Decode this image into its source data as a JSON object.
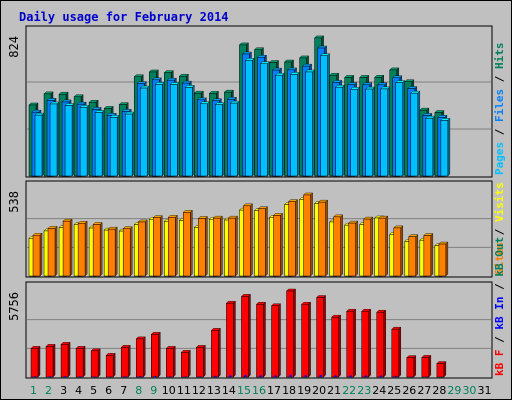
{
  "title": "Daily usage for February 2014",
  "colors": {
    "background": "#c0c0c0",
    "title": "#0000cc",
    "hits": "#00805c",
    "files": "#0080ff",
    "pages": "#00c0ff",
    "visits": "#ffff00",
    "sites": "#ff8000",
    "kb_in": "#0000ff",
    "kb_out": "#00805c",
    "kbytes": "#ff0000",
    "weekday_label": "#000000",
    "weekend_label": "#00805c"
  },
  "panel_labels": {
    "top": [
      {
        "text": "Pages",
        "color": "#00c0ff"
      },
      {
        "text": " / ",
        "color": "#000000"
      },
      {
        "text": "Files",
        "color": "#0080ff"
      },
      {
        "text": " / ",
        "color": "#000000"
      },
      {
        "text": "Hits",
        "color": "#00805c"
      }
    ],
    "middle": [
      {
        "text": "Sites",
        "color": "#ff8000"
      },
      {
        "text": " / ",
        "color": "#000000"
      },
      {
        "text": "Visits",
        "color": "#ffff00"
      }
    ],
    "bottom": [
      {
        "text": "kB F",
        "color": "#ff0000"
      },
      {
        "text": " / ",
        "color": "#000000"
      },
      {
        "text": "kB In",
        "color": "#0000ff"
      },
      {
        "text": " / ",
        "color": "#000000"
      },
      {
        "text": "kB Out",
        "color": "#00805c"
      }
    ]
  },
  "chart_data": {
    "type": "bar",
    "title": "Daily usage for February 2014",
    "categories": [
      "1",
      "2",
      "3",
      "4",
      "5",
      "6",
      "7",
      "8",
      "9",
      "10",
      "11",
      "12",
      "13",
      "14",
      "15",
      "16",
      "17",
      "18",
      "19",
      "20",
      "21",
      "22",
      "23",
      "24",
      "25",
      "26",
      "27",
      "28",
      "29",
      "30",
      "31"
    ],
    "weekend_days": [
      "1",
      "2",
      "8",
      "9",
      "15",
      "16",
      "22",
      "23",
      "29",
      "30"
    ],
    "panels": [
      {
        "name": "top",
        "ylim": [
          0,
          824
        ],
        "max_label": "824",
        "series": [
          {
            "name": "Hits",
            "values": [
              415,
              480,
              478,
              463,
              431,
              395,
              417,
              580,
              608,
              604,
              583,
              484,
              483,
              490,
              766,
              738,
              663,
              666,
              690,
              807,
              589,
              576,
              576,
              577,
              620,
              551,
              385,
              371,
              0,
              0,
              0
            ]
          },
          {
            "name": "Files",
            "values": [
              373,
              442,
              433,
              420,
              389,
              355,
              378,
              540,
              562,
              560,
              543,
              445,
              440,
              448,
              713,
              694,
              619,
              620,
              642,
              748,
              547,
              534,
              533,
              533,
              574,
              511,
              354,
              343,
              0,
              0,
              0
            ]
          },
          {
            "name": "Pages",
            "values": [
              356,
              421,
              412,
              402,
              371,
              343,
              362,
              514,
              535,
              535,
              518,
              422,
              417,
              426,
              676,
              656,
              589,
              594,
              608,
              703,
              519,
              507,
              508,
              509,
              546,
              484,
              338,
              325,
              0,
              0,
              0
            ]
          }
        ]
      },
      {
        "name": "middle",
        "ylim": [
          0,
          538
        ],
        "max_label": "538",
        "series": [
          {
            "name": "Visits",
            "values": [
              236,
              282,
              303,
              321,
              300,
              287,
              281,
              322,
              355,
              342,
              347,
              304,
              355,
              350,
              412,
              409,
              367,
              447,
              479,
              454,
              338,
              318,
              322,
              363,
              261,
              216,
              224,
              190,
              0,
              0,
              0
            ]
          },
          {
            "name": "Sites",
            "values": [
              255,
              298,
              343,
              330,
              322,
              293,
              296,
              338,
              365,
              367,
              398,
              360,
              362,
              362,
              439,
              421,
              379,
              465,
              507,
              462,
              370,
              331,
              356,
              362,
              301,
              246,
              253,
              200,
              0,
              0,
              0
            ]
          }
        ]
      },
      {
        "name": "bottom",
        "ylim": [
          0,
          5756
        ],
        "max_label": "5756",
        "series": [
          {
            "name": "KBytes",
            "values": [
              1916,
              2050,
              2184,
              1916,
              1749,
              1448,
              1983,
              2552,
              2853,
              1916,
              1649,
              1983,
              3120,
              4938,
              5396,
              4870,
              4770,
              5755,
              4871,
              5319,
              4002,
              4401,
              4401,
              4337,
              3200,
              1300,
              1310,
              900,
              0,
              0,
              0
            ]
          },
          {
            "name": "KB In",
            "values": [
              45,
              50,
              55,
              40,
              35,
              25,
              45,
              60,
              70,
              40,
              35,
              45,
              80,
              130,
              140,
              120,
              115,
              150,
              120,
              135,
              100,
              110,
              110,
              105,
              80,
              25,
              25,
              15,
              0,
              0,
              0
            ]
          }
        ]
      }
    ]
  }
}
